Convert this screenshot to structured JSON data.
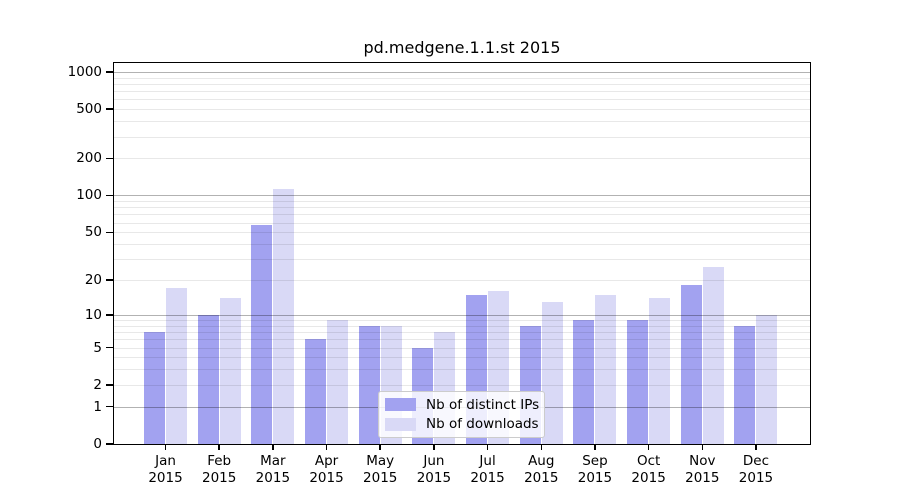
{
  "title": "pd.medgene.1.1.st 2015",
  "chart_data": {
    "type": "bar",
    "title": "pd.medgene.1.1.st 2015",
    "xlabel": "",
    "ylabel": "",
    "year": "2015",
    "categories": [
      "Jan",
      "Feb",
      "Mar",
      "Apr",
      "May",
      "Jun",
      "Jul",
      "Aug",
      "Sep",
      "Oct",
      "Nov",
      "Dec"
    ],
    "series": [
      {
        "name": "Nb of distinct IPs",
        "color": "#a2a2f0",
        "values": [
          7,
          10,
          57,
          6,
          8,
          5,
          15,
          8,
          9,
          9,
          18,
          8
        ]
      },
      {
        "name": "Nb of downloads",
        "color": "#d9d9f6",
        "values": [
          17,
          14,
          112,
          9,
          8,
          7,
          16,
          13,
          15,
          14,
          26,
          10
        ]
      }
    ],
    "y_scale": "log10(value+1)",
    "y_ticks": [
      0,
      1,
      2,
      5,
      10,
      20,
      50,
      100,
      200,
      500,
      1000
    ],
    "ylim": [
      0,
      1250
    ],
    "grid": "horizontal log minor+major, drawn over bars",
    "legend_position": "inside lower-center",
    "colors": {
      "bar_distinct_ips": "#a2a2f0",
      "bar_downloads": "#d9d9f6",
      "grid_major": "#b3b3b3",
      "grid_minor": "#e8e8e8",
      "spine": "#000000"
    }
  },
  "legend": {
    "items": [
      {
        "label": "Nb of distinct IPs"
      },
      {
        "label": "Nb of downloads"
      }
    ]
  }
}
